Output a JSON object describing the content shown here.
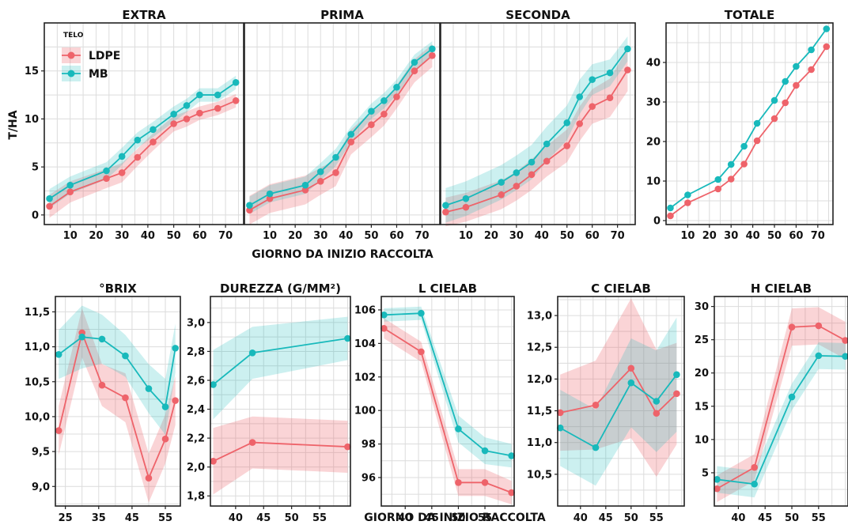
{
  "colors": {
    "LDPE": "#EE636A",
    "MB": "#18B9BB",
    "grid": "#dcdcdc",
    "frame": "#222222"
  },
  "legend": {
    "title": "TELO",
    "labels": [
      "LDPE",
      "MB"
    ]
  },
  "labels": {
    "ylabel_top": "T/HA",
    "xlabel_top": "GIORNO DA INIZIO RACCOLTA",
    "xlabel_bottom": "GIORNO DA INIZIO RACCOLTA"
  },
  "chart_data": [
    {
      "type": "line",
      "title": "EXTRA",
      "xlim": [
        0,
        77
      ],
      "ylim": [
        -1,
        20
      ],
      "xticks": [
        "10",
        "20",
        "30",
        "40",
        "50",
        "60",
        "70"
      ],
      "yticks": [
        "0",
        "5",
        "10",
        "15"
      ],
      "series": [
        {
          "name": "LDPE",
          "x": [
            2,
            10,
            24,
            30,
            36,
            42,
            50,
            55,
            60,
            67,
            74
          ],
          "y": [
            0.9,
            2.4,
            3.8,
            4.4,
            6.0,
            7.6,
            9.5,
            10.0,
            10.6,
            11.1,
            11.9
          ],
          "band": [
            1.2,
            1.1,
            1.0,
            1.0,
            0.9,
            0.9,
            0.8,
            0.8,
            0.7,
            0.7,
            0.7
          ]
        },
        {
          "name": "MB",
          "x": [
            2,
            10,
            24,
            30,
            36,
            42,
            50,
            55,
            60,
            67,
            74
          ],
          "y": [
            1.7,
            3.1,
            4.6,
            6.1,
            7.8,
            8.9,
            10.5,
            11.4,
            12.5,
            12.5,
            13.8
          ],
          "band": [
            1.0,
            0.9,
            0.9,
            0.9,
            0.8,
            0.8,
            0.8,
            0.7,
            0.7,
            0.7,
            0.7
          ]
        }
      ]
    },
    {
      "type": "line",
      "title": "PRIMA",
      "xlim": [
        0,
        77
      ],
      "ylim": [
        -1,
        20
      ],
      "xticks": [
        "10",
        "20",
        "30",
        "40",
        "50",
        "60",
        "70"
      ],
      "yticks": [
        "0",
        "5",
        "10",
        "15"
      ],
      "series": [
        {
          "name": "LDPE",
          "x": [
            2,
            10,
            24,
            30,
            36,
            42,
            50,
            55,
            60,
            67,
            74
          ],
          "y": [
            0.5,
            1.7,
            2.6,
            3.5,
            4.4,
            7.6,
            9.4,
            10.5,
            12.3,
            15.0,
            16.6
          ],
          "band": [
            1.5,
            1.5,
            1.5,
            1.4,
            1.4,
            1.3,
            1.3,
            1.2,
            1.2,
            1.2,
            1.2
          ]
        },
        {
          "name": "MB",
          "x": [
            2,
            10,
            24,
            30,
            36,
            42,
            50,
            55,
            60,
            67,
            74
          ],
          "y": [
            1.0,
            2.2,
            3.1,
            4.5,
            6.0,
            8.4,
            10.8,
            11.9,
            13.3,
            15.9,
            17.3
          ],
          "band": [
            0.9,
            0.9,
            0.9,
            0.9,
            0.9,
            0.8,
            0.8,
            0.8,
            0.8,
            0.8,
            0.8
          ]
        }
      ]
    },
    {
      "type": "line",
      "title": "SECONDA",
      "xlim": [
        0,
        77
      ],
      "ylim": [
        -1,
        20
      ],
      "xticks": [
        "10",
        "20",
        "30",
        "40",
        "50",
        "60",
        "70"
      ],
      "yticks": [
        "0",
        "5",
        "10",
        "15"
      ],
      "series": [
        {
          "name": "LDPE",
          "x": [
            2,
            10,
            24,
            30,
            36,
            42,
            50,
            55,
            60,
            67,
            74
          ],
          "y": [
            0.3,
            0.8,
            2.1,
            3.0,
            4.2,
            5.6,
            7.2,
            9.5,
            11.3,
            12.2,
            15.1
          ],
          "band": [
            1.5,
            1.5,
            1.5,
            1.5,
            1.6,
            1.6,
            1.7,
            1.8,
            1.8,
            2.0,
            2.2
          ]
        },
        {
          "name": "MB",
          "x": [
            2,
            10,
            24,
            30,
            36,
            42,
            50,
            55,
            60,
            67,
            74
          ],
          "y": [
            1.0,
            1.7,
            3.4,
            4.4,
            5.5,
            7.4,
            9.6,
            12.3,
            14.1,
            14.8,
            17.3
          ],
          "band": [
            1.8,
            1.8,
            1.8,
            1.8,
            1.8,
            1.8,
            1.8,
            1.8,
            1.6,
            1.4,
            1.3
          ]
        }
      ]
    },
    {
      "type": "line",
      "title": "TOTALE",
      "xlim": [
        0,
        77
      ],
      "ylim": [
        -1,
        50
      ],
      "xticks": [
        "10",
        "20",
        "30",
        "40",
        "50",
        "60",
        "70"
      ],
      "yticks": [
        "0",
        "10",
        "20",
        "30",
        "40"
      ],
      "series": [
        {
          "name": "LDPE",
          "x": [
            2,
            10,
            24,
            30,
            36,
            42,
            50,
            55,
            60,
            67,
            74
          ],
          "y": [
            1.2,
            4.5,
            8.0,
            10.5,
            14.3,
            20.2,
            25.8,
            29.8,
            34.2,
            38.2,
            44.0
          ],
          "band": [
            0,
            0,
            0,
            0,
            0,
            0,
            0,
            0,
            0,
            0,
            0
          ]
        },
        {
          "name": "MB",
          "x": [
            2,
            10,
            24,
            30,
            36,
            42,
            50,
            55,
            60,
            67,
            74
          ],
          "y": [
            3.2,
            6.5,
            10.4,
            14.2,
            18.8,
            24.6,
            30.4,
            35.2,
            39.0,
            43.2,
            48.5
          ],
          "band": [
            0,
            0,
            0,
            0,
            0,
            0,
            0,
            0,
            0,
            0,
            0
          ]
        }
      ]
    },
    {
      "type": "line",
      "title": "°BRIX",
      "xlim": [
        22,
        59.5
      ],
      "ylim": [
        8.72,
        11.72
      ],
      "xticks": [
        "25",
        "35",
        "45",
        "55"
      ],
      "yticks": [
        "9,0",
        "9,5",
        "10,0",
        "10,5",
        "11,0",
        "11,5"
      ],
      "series": [
        {
          "name": "LDPE",
          "x": [
            23,
            30,
            36,
            43,
            50,
            55,
            58
          ],
          "y": [
            9.8,
            11.2,
            10.45,
            10.27,
            9.12,
            9.68,
            10.23
          ],
          "band": [
            0.35,
            0.35,
            0.3,
            0.35,
            0.35,
            0.35,
            0.35
          ]
        },
        {
          "name": "MB",
          "x": [
            23,
            30,
            36,
            43,
            50,
            55,
            58
          ],
          "y": [
            10.89,
            11.14,
            11.11,
            10.87,
            10.4,
            10.14,
            10.98
          ],
          "band": [
            0.35,
            0.45,
            0.35,
            0.3,
            0.35,
            0.4,
            0.35
          ]
        }
      ]
    },
    {
      "type": "line",
      "title": "DUREZZA (G/MM²)",
      "xlim": [
        35.5,
        60.5
      ],
      "ylim": [
        1.73,
        3.18
      ],
      "xticks": [
        "40",
        "45",
        "50",
        "55"
      ],
      "yticks": [
        "1,8",
        "2,0",
        "2,2",
        "2,4",
        "2,6",
        "2,8",
        "3,0"
      ],
      "series": [
        {
          "name": "LDPE",
          "x": [
            36,
            43,
            60
          ],
          "y": [
            2.04,
            2.17,
            2.14
          ],
          "band": [
            0.23,
            0.18,
            0.18
          ]
        },
        {
          "name": "MB",
          "x": [
            36,
            43,
            60
          ],
          "y": [
            2.57,
            2.79,
            2.89
          ],
          "band": [
            0.24,
            0.18,
            0.15
          ]
        }
      ]
    },
    {
      "type": "line",
      "title": "L CIELAB",
      "xlim": [
        35.5,
        60.5
      ],
      "ylim": [
        94.3,
        106.8
      ],
      "xticks": [
        "40",
        "45",
        "50",
        "55"
      ],
      "yticks": [
        "96",
        "98",
        "100",
        "102",
        "104",
        "106"
      ],
      "series": [
        {
          "name": "LDPE",
          "x": [
            36,
            43,
            50,
            55,
            60
          ],
          "y": [
            104.9,
            103.5,
            95.7,
            95.7,
            95.1
          ],
          "band": [
            0.6,
            0.6,
            0.8,
            0.8,
            0.7
          ]
        },
        {
          "name": "MB",
          "x": [
            36,
            43,
            50,
            55,
            60
          ],
          "y": [
            105.7,
            105.8,
            98.9,
            97.6,
            97.3
          ],
          "band": [
            0.4,
            0.4,
            0.8,
            0.8,
            0.7
          ]
        }
      ]
    },
    {
      "type": "line",
      "title": "C CIELAB",
      "xlim": [
        35.5,
        60.5
      ],
      "ylim": [
        10.0,
        13.3
      ],
      "xticks": [
        "40",
        "45",
        "50",
        "55"
      ],
      "yticks": [
        "10,5",
        "11,0",
        "11,5",
        "12,0",
        "12,5",
        "13,0"
      ],
      "series": [
        {
          "name": "LDPE",
          "x": [
            36,
            43,
            50,
            55,
            59
          ],
          "y": [
            11.47,
            11.59,
            12.17,
            11.46,
            11.77
          ],
          "band": [
            0.6,
            0.7,
            1.1,
            1.0,
            0.8
          ]
        },
        {
          "name": "MB",
          "x": [
            36,
            43,
            50,
            55,
            59
          ],
          "y": [
            11.23,
            10.92,
            11.94,
            11.65,
            12.07
          ],
          "band": [
            0.6,
            0.6,
            0.7,
            0.8,
            0.9
          ]
        }
      ]
    },
    {
      "type": "line",
      "title": "H CIELAB",
      "xlim": [
        35.5,
        60.5
      ],
      "ylim": [
        0,
        31.5
      ],
      "xticks": [
        "40",
        "45",
        "50",
        "55"
      ],
      "yticks": [
        "5",
        "10",
        "15",
        "20",
        "25",
        "30"
      ],
      "series": [
        {
          "name": "LDPE",
          "x": [
            36,
            43,
            50,
            55,
            60
          ],
          "y": [
            2.6,
            5.8,
            26.9,
            27.1,
            24.9
          ],
          "band": [
            2.0,
            2.0,
            2.8,
            2.8,
            2.8
          ]
        },
        {
          "name": "MB",
          "x": [
            36,
            43,
            50,
            55,
            60
          ],
          "y": [
            4.0,
            3.3,
            16.4,
            22.6,
            22.5
          ],
          "band": [
            2.0,
            2.0,
            2.0,
            2.0,
            2.0
          ]
        }
      ]
    }
  ]
}
